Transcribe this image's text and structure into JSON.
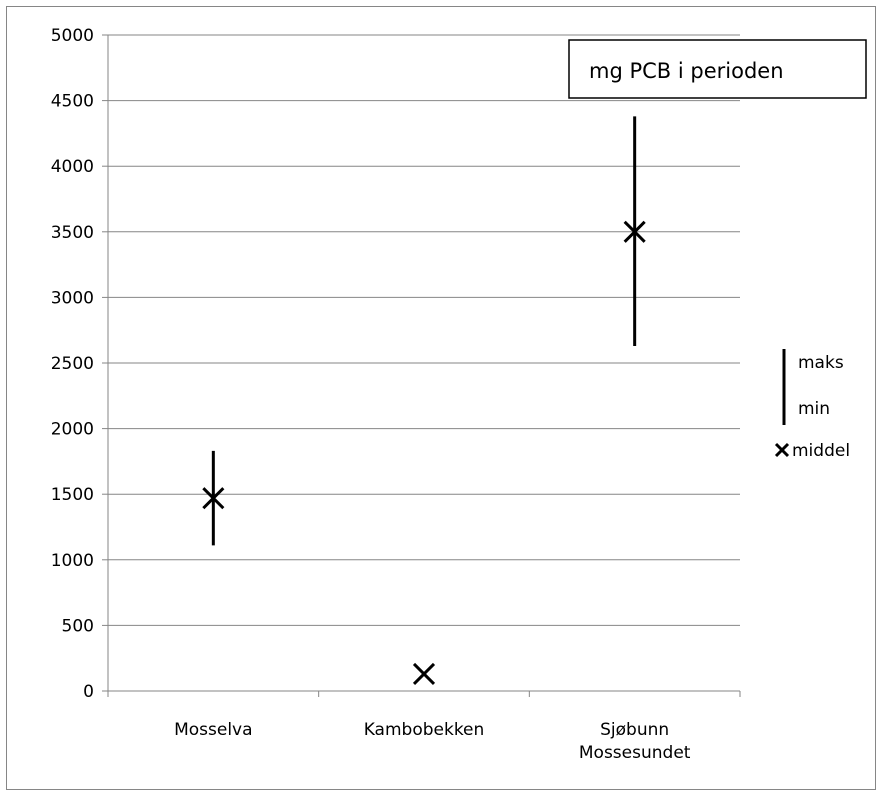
{
  "chart_data": {
    "type": "scatter",
    "title": "mg PCB i perioden",
    "xlabel": "",
    "ylabel": "",
    "ylim": [
      0,
      5000
    ],
    "yticks": [
      0,
      500,
      1000,
      1500,
      2000,
      2500,
      3000,
      3500,
      4000,
      4500,
      5000
    ],
    "grid": true,
    "legend_position": "right",
    "categories": [
      {
        "lines": [
          "Mosselva"
        ]
      },
      {
        "lines": [
          "Kambobekken"
        ]
      },
      {
        "lines": [
          "Sjøbunn",
          "Mossesundet"
        ]
      }
    ],
    "series": [
      {
        "name": "maks",
        "values": [
          1830,
          null,
          4380
        ]
      },
      {
        "name": "min",
        "values": [
          1110,
          null,
          2630
        ]
      },
      {
        "name": "middel",
        "values": [
          1470,
          130,
          3500
        ]
      }
    ],
    "legend": {
      "maks_label": "maks",
      "min_label": "min",
      "middel_label": "middel"
    },
    "colors": {
      "marks": "#000000",
      "grid": "#868686"
    }
  }
}
